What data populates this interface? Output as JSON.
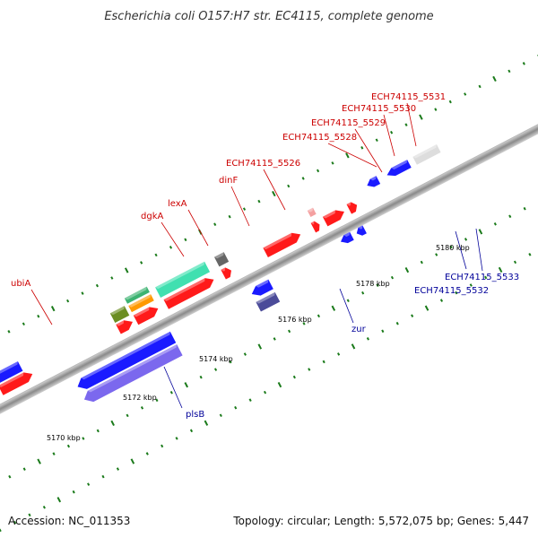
{
  "title": "Escherichia coli O157:H7 str. EC4115, complete genome",
  "footer": {
    "accession": "Accession: NC_011353",
    "summary": "Topology: circular; Length: 5,572,075 bp; Genes: 5,447"
  },
  "scale_labels": [
    "5170 kbp",
    "5172 kbp",
    "5174 kbp",
    "5176 kbp",
    "5178 kbp",
    "5180 kbp"
  ],
  "forward_gene_labels": [
    "ubiA",
    "dgkA",
    "lexA",
    "dinF",
    "ECH74115_5526",
    "ECH74115_5528",
    "ECH74115_5529",
    "ECH74115_5530",
    "ECH74115_5531"
  ],
  "reverse_gene_labels": [
    "plsB",
    "zur",
    "ECH74115_5532",
    "ECH74115_5533"
  ],
  "colors": {
    "forward_cds": "#ff1a1a",
    "reverse_cds": "#1a1aff",
    "reverse_rna": "#7b68ee",
    "other_gray": "#666666",
    "highlight_green": "#3cb371",
    "highlight_teal": "#40e0b0",
    "highlight_olive": "#6b8e23",
    "highlight_orange": "#ff9900",
    "backbone": "#999999",
    "tick_green": "#1a7a1a"
  }
}
